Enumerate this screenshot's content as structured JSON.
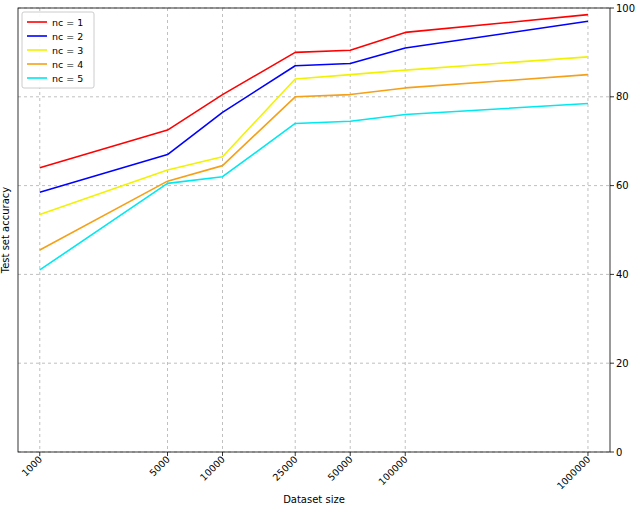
{
  "chart_data": {
    "type": "line",
    "x_label": "Dataset size",
    "y_label": "Test set accuracy",
    "x": [
      1000,
      5000,
      10000,
      25000,
      50000,
      100000,
      1000000
    ],
    "series": [
      {
        "name": "nc = 1",
        "color": "#ff0000",
        "values": [
          64,
          72.5,
          80.5,
          90,
          90.5,
          94.5,
          98.5
        ]
      },
      {
        "name": "nc = 2",
        "color": "#0000ff",
        "values": [
          58.5,
          67,
          76.5,
          87,
          87.5,
          91,
          97
        ]
      },
      {
        "name": "nc = 3",
        "color": "#f2f200",
        "values": [
          53.5,
          63.5,
          66.5,
          84,
          85,
          86,
          89
        ]
      },
      {
        "name": "nc = 4",
        "color": "#f5a016",
        "values": [
          45.5,
          61,
          64.5,
          80,
          80.5,
          82,
          85
        ]
      },
      {
        "name": "nc = 5",
        "color": "#00e8f0",
        "values": [
          41,
          60.5,
          62,
          74,
          74.5,
          76,
          78.5
        ]
      }
    ],
    "xlim": [
      760,
      1320000
    ],
    "xticks": [
      1000,
      5000,
      10000,
      25000,
      50000,
      100000,
      1000000
    ],
    "ylim": [
      0,
      100
    ],
    "yticks": [
      0,
      20,
      40,
      60,
      80,
      100
    ],
    "log": "x",
    "grid": true,
    "legend": "top-left"
  }
}
